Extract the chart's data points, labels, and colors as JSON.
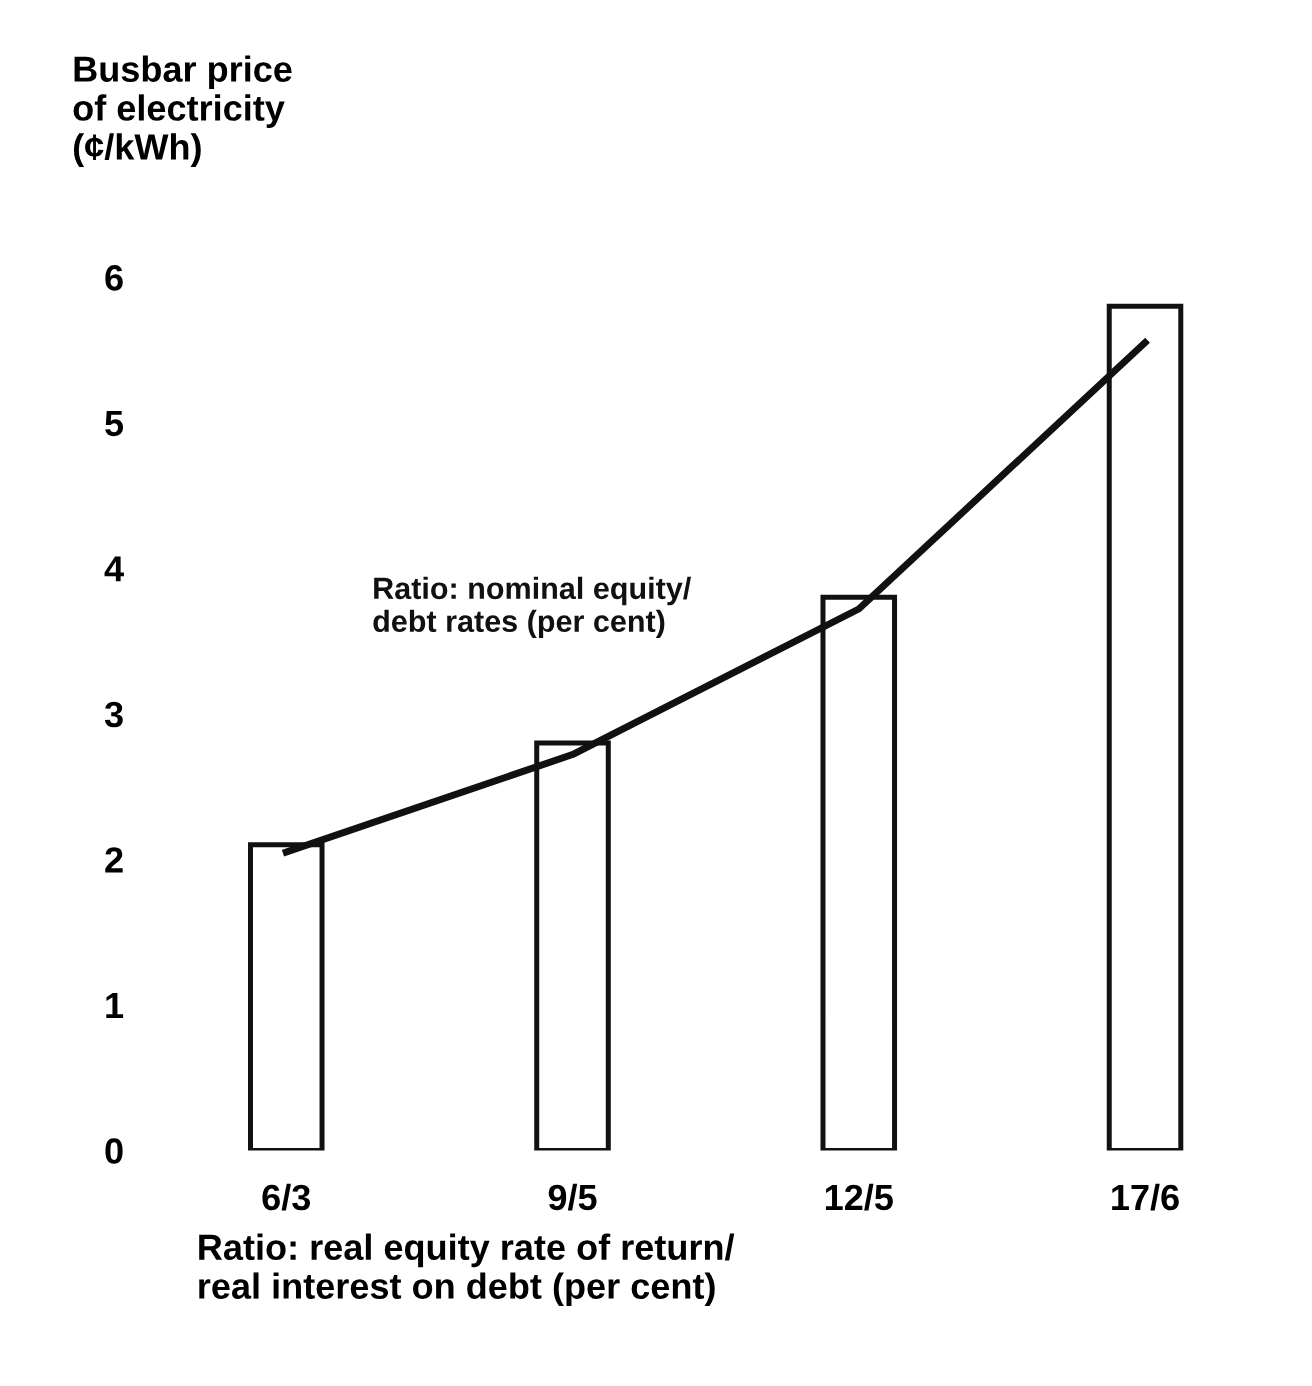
{
  "chart_data": {
    "type": "bar",
    "ylabel": "Busbar price\nof electricity\n(¢/kWh)",
    "xlabel": "Ratio: real equity rate of return/\nreal interest on debt (per cent)",
    "categories": [
      "6/3",
      "9/5",
      "12/5",
      "17/6"
    ],
    "series": [
      {
        "color": "#ffffff",
        "values": [
          2.1,
          2.8,
          3.8,
          5.8
        ]
      },
      {
        "type": "line",
        "name": "Ratio: nominal equity/\ndebt rates (per cent)",
        "color": "#111111",
        "values": [
          2.05,
          2.72,
          3.72,
          5.55
        ]
      }
    ],
    "ylim": [
      0,
      6
    ],
    "yticks": [
      0,
      1,
      2,
      3,
      4,
      5,
      6
    ],
    "grid": false,
    "legend": false
  }
}
